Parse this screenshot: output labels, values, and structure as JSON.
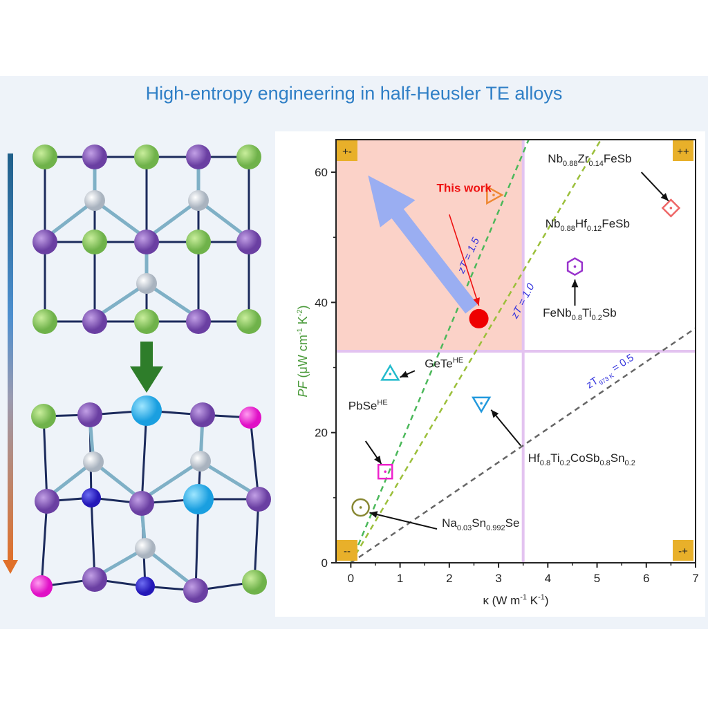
{
  "headline": "High-entropy engineering in half-Heusler TE alloys",
  "chart_data": {
    "type": "scatter",
    "xlabel": "κ (W m⁻¹ K⁻¹)",
    "ylabel": "PF (μW cm⁻¹ K⁻²)",
    "xlim": [
      -0.3,
      7
    ],
    "ylim": [
      0,
      65
    ],
    "xticks": [
      "0",
      "1",
      "2",
      "3",
      "4",
      "5",
      "6",
      "7"
    ],
    "yticks": [
      "0",
      "20",
      "40",
      "60"
    ],
    "quadrant_split": {
      "x": 3.5,
      "y": 32.5
    },
    "quadrants": [
      "+-",
      "++",
      "--",
      "-+"
    ],
    "colors": {
      "highlight": "#fbd2c8",
      "axis_y": "#4a9a3a",
      "arrow": "#9aaef2",
      "work": "#ff0000",
      "zt_label": "#3333dd"
    },
    "zt_lines": [
      {
        "label": "zT = 1.5",
        "slope": 18.0,
        "color": "#4bb85a"
      },
      {
        "label": "zT = 1.0",
        "slope": 12.8,
        "color": "#9bbf3a"
      },
      {
        "label": "zT973 K = 0.5",
        "slope": 5.15,
        "color": "#666666"
      }
    ],
    "highlight_label": "This work",
    "points": [
      {
        "label": "This work",
        "x": 2.6,
        "y": 37.5,
        "marker": "filled-circle",
        "color": "#ee0000"
      },
      {
        "label": "Nb0.88Zr0.14FeSb",
        "x": 6.5,
        "y": 54.5,
        "marker": "diamond",
        "color": "#ee6666"
      },
      {
        "label": "Nb0.88Hf0.12FeSb",
        "x": 2.9,
        "y": 56.5,
        "marker": "triangle-right",
        "color": "#ee8833"
      },
      {
        "label": "FeNb0.8Ti0.2Sb",
        "x": 4.55,
        "y": 45.5,
        "marker": "hexagon",
        "color": "#9933cc"
      },
      {
        "label": "GeTeHE",
        "x": 0.8,
        "y": 29,
        "marker": "triangle-up",
        "color": "#22bbcc"
      },
      {
        "label": "Hf0.8Ti0.2CoSb0.8Sn0.2",
        "x": 2.65,
        "y": 24.5,
        "marker": "triangle-down",
        "color": "#2299dd"
      },
      {
        "label": "PbSeHE",
        "x": 0.7,
        "y": 14,
        "marker": "square",
        "color": "#ee22cc"
      },
      {
        "label": "Na0.03Sn0.992Se",
        "x": 0.2,
        "y": 8.5,
        "marker": "circle",
        "color": "#888833"
      }
    ]
  }
}
